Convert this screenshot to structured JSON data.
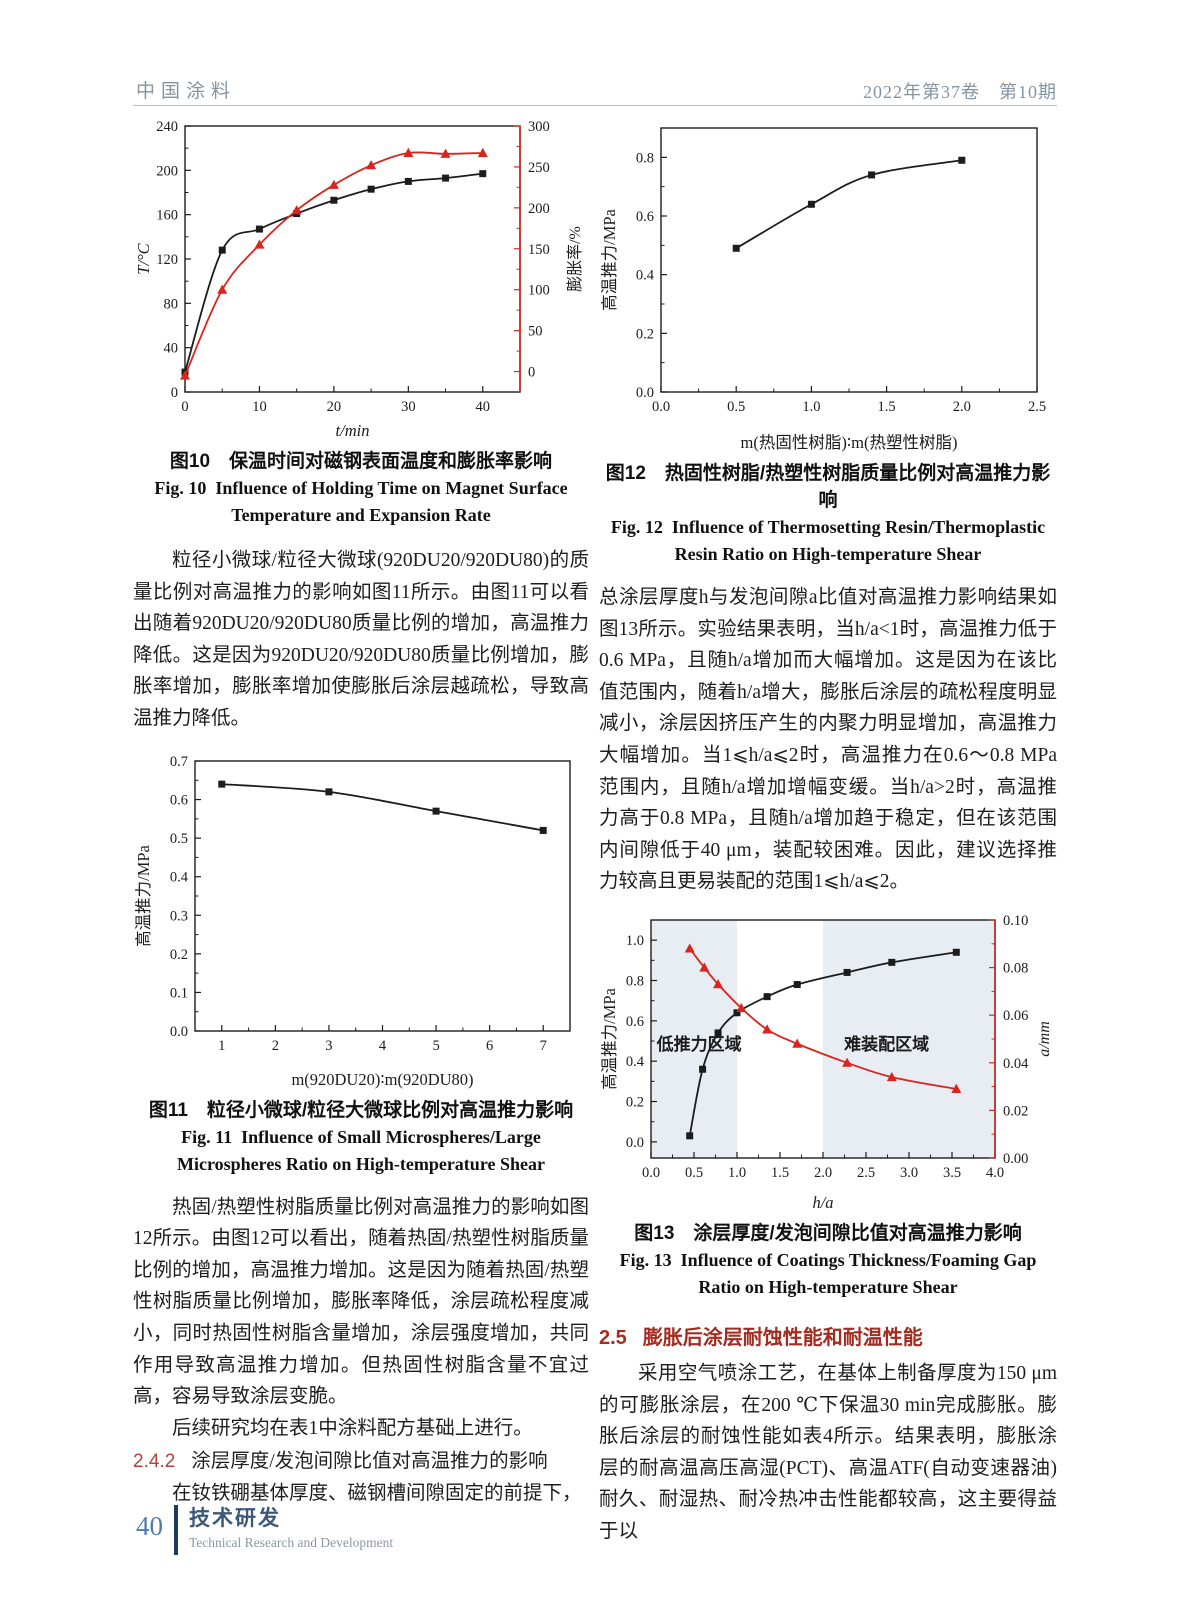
{
  "header": {
    "journal": "中国涂料",
    "issue_info": "2022年第37卷　第10期"
  },
  "footer": {
    "page_number": "40",
    "section_cn": "技术研发",
    "section_en": "Technical Research and Development"
  },
  "colors": {
    "accent_red": "#d9251d",
    "section_red": "#a32c20",
    "header_gray_blue": "#8494a2",
    "footer_blue": "#3a5878",
    "band_fill": "#e8edf4"
  },
  "left_column": {
    "fig10_caption_cn": "图10　保温时间对磁钢表面温度和膨胀率影响",
    "fig10_caption_en1": "Fig. 10 Influence of Holding Time on Magnet Surface",
    "fig10_caption_en2": "Temperature and Expansion Rate",
    "para1": "粒径小微球/粒径大微球(920DU20/920DU80)的质量比例对高温推力的影响如图11所示。由图11可以看出随着920DU20/920DU80质量比例的增加，高温推力降低。这是因为920DU20/920DU80质量比例增加，膨胀率增加，膨胀率增加使膨胀后涂层越疏松，导致高温推力降低。",
    "fig11_caption_cn": "图11　粒径小微球/粒径大微球比例对高温推力影响",
    "fig11_caption_en1": "Fig. 11 Influence of Small Microspheres/Large",
    "fig11_caption_en2": "Microspheres Ratio on High-temperature Shear",
    "para2": "热固/热塑性树脂质量比例对高温推力的影响如图12所示。由图12可以看出，随着热固/热塑性树脂质量比例的增加，高温推力增加。这是因为随着热固/热塑性树脂质量比例增加，膨胀率降低，涂层疏松程度减小，同时热固性树脂含量增加，涂层强度增加，共同作用导致高温推力增加。但热固性树脂含量不宜过高，容易导致涂层变脆。",
    "para3": "后续研究均在表1中涂料配方基础上进行。",
    "section_242": {
      "number": "2.4.2",
      "title": "涂层厚度/发泡间隙比值对高温推力的影响"
    },
    "para4": "在钕铁硼基体厚度、磁钢槽间隙固定的前提下，"
  },
  "right_column": {
    "fig12_caption_cn": "图12　热固性树脂/热塑性树脂质量比例对高温推力影响",
    "fig12_caption_en1": "Fig. 12 Influence of Thermosetting Resin/Thermoplastic",
    "fig12_caption_en2": "Resin Ratio on High-temperature Shear",
    "para1": "总涂层厚度h与发泡间隙a比值对高温推力影响结果如图13所示。实验结果表明，当h/a<1时，高温推力低于0.6 MPa，且随h/a增加而大幅增加。这是因为在该比值范围内，随着h/a增大，膨胀后涂层的疏松程度明显减小，涂层因挤压产生的内聚力明显增加，高温推力大幅增加。当1⩽h/a⩽2时，高温推力在0.6～0.8 MPa范围内，且随h/a增加增幅变缓。当h/a>2时，高温推力高于0.8 MPa，且随h/a增加趋于稳定，但在该范围内间隙低于40 μm，装配较困难。因此，建议选择推力较高且更易装配的范围1⩽h/a⩽2。",
    "fig13_caption_cn": "图13　涂层厚度/发泡间隙比值对高温推力影响",
    "fig13_caption_en1": "Fig. 13 Influence of Coatings Thickness/Foaming Gap",
    "fig13_caption_en2": "Ratio on High-temperature Shear",
    "section_25": {
      "number": "2.5",
      "title": "膨胀后涂层耐蚀性能和耐温性能"
    },
    "para2": "采用空气喷涂工艺，在基体上制备厚度为150 μm的可膨胀涂层，在200 ℃下保温30 min完成膨胀。膨胀后涂层的耐蚀性能如表4所示。结果表明，膨胀涂层的耐高温高压高湿(PCT)、高温ATF(自动变速器油)耐久、耐湿热、耐冷热冲击性能都较高，这主要得益于以"
  },
  "chart_data": [
    {
      "id": "fig10",
      "type": "line",
      "title": "保温时间对磁钢表面温度和膨胀率影响",
      "margins": {
        "l": 52,
        "r": 68,
        "t": 14,
        "b": 52
      },
      "x": {
        "range": [
          0,
          45
        ],
        "ticks": [
          0,
          10,
          20,
          30,
          40
        ],
        "tick_labels": [
          "0",
          "10",
          "20",
          "30",
          "40"
        ],
        "minor": [
          5,
          15,
          25,
          35
        ],
        "label": "t/min",
        "label_italic": true
      },
      "y": {
        "range": [
          0,
          240
        ],
        "ticks": [
          0,
          40,
          80,
          120,
          160,
          200,
          240
        ],
        "tick_labels": [
          "0",
          "40",
          "80",
          "120",
          "160",
          "200",
          "240"
        ],
        "minor": [
          20,
          60,
          100,
          140,
          180,
          220
        ],
        "label": "T/°C",
        "label_italic": true
      },
      "y2": {
        "range": [
          -25,
          300
        ],
        "ticks": [
          0,
          50,
          100,
          150,
          200,
          250,
          300
        ],
        "tick_labels": [
          "0",
          "50",
          "100",
          "150",
          "200",
          "250",
          "300"
        ],
        "minor": [
          25,
          75,
          125,
          175,
          225,
          275
        ],
        "label": "膨胀率/%",
        "color": "#d9251d"
      },
      "series": [
        {
          "name": "磁钢表面温度",
          "marker": "square",
          "color": "#1c1c1c",
          "points": [
            [
              0,
              18
            ],
            [
              5,
              128
            ],
            [
              10,
              147
            ],
            [
              15,
              161
            ],
            [
              20,
              173
            ],
            [
              25,
              183
            ],
            [
              30,
              190
            ],
            [
              35,
              193
            ],
            [
              40,
              197
            ]
          ]
        },
        {
          "name": "膨胀率",
          "marker": "triangle",
          "color": "#d9251d",
          "axis": "y2",
          "points": [
            [
              0,
              -5
            ],
            [
              5,
              100
            ],
            [
              10,
              155
            ],
            [
              15,
              197
            ],
            [
              20,
              228
            ],
            [
              25,
              252
            ],
            [
              30,
              267
            ],
            [
              35,
              266
            ],
            [
              40,
              267
            ]
          ]
        }
      ]
    },
    {
      "id": "fig11",
      "type": "line",
      "title": "粒径小微球/粒径大微球比例对高温推力影响",
      "margins": {
        "l": 62,
        "r": 18,
        "t": 14,
        "b": 62
      },
      "x": {
        "range": [
          0.5,
          7.5
        ],
        "ticks": [
          1,
          2,
          3,
          4,
          5,
          6,
          7
        ],
        "tick_labels": [
          "1",
          "2",
          "3",
          "4",
          "5",
          "6",
          "7"
        ],
        "minor": [
          1.5,
          2.5,
          3.5,
          4.5,
          5.5,
          6.5
        ],
        "label": "m(920DU20)∶m(920DU80)",
        "label_italic": false
      },
      "y": {
        "range": [
          0,
          0.7
        ],
        "ticks": [
          0,
          0.1,
          0.2,
          0.3,
          0.4,
          0.5,
          0.6,
          0.7
        ],
        "tick_labels": [
          "0.0",
          "0.1",
          "0.2",
          "0.3",
          "0.4",
          "0.5",
          "0.6",
          "0.7"
        ],
        "minor": [
          0.05,
          0.15,
          0.25,
          0.35,
          0.45,
          0.55,
          0.65
        ],
        "label": "高温推力/MPa",
        "label_italic": false
      },
      "series": [
        {
          "name": "高温推力",
          "marker": "square",
          "color": "#1c1c1c",
          "points": [
            [
              1,
              0.64
            ],
            [
              3,
              0.62
            ],
            [
              5,
              0.57
            ],
            [
              7,
              0.52
            ]
          ]
        }
      ]
    },
    {
      "id": "fig12",
      "type": "line",
      "title": "热固性树脂/热塑性树脂质量比例对高温推力影响",
      "margins": {
        "l": 62,
        "r": 20,
        "t": 16,
        "b": 64
      },
      "x": {
        "range": [
          0,
          2.5
        ],
        "ticks": [
          0,
          0.5,
          1.0,
          1.5,
          2.0,
          2.5
        ],
        "tick_labels": [
          "0.0",
          "0.5",
          "1.0",
          "1.5",
          "2.0",
          "2.5"
        ],
        "minor": [
          0.25,
          0.75,
          1.25,
          1.75,
          2.25
        ],
        "label": "m(热固性树脂)∶m(热塑性树脂)",
        "label_italic": false
      },
      "y": {
        "range": [
          0,
          0.9
        ],
        "ticks": [
          0,
          0.2,
          0.4,
          0.6,
          0.8
        ],
        "tick_labels": [
          "0.0",
          "0.2",
          "0.4",
          "0.6",
          "0.8"
        ],
        "minor": [
          0.1,
          0.3,
          0.5,
          0.7
        ],
        "label": "高温推力/MPa",
        "label_italic": false
      },
      "series": [
        {
          "name": "高温推力",
          "marker": "square",
          "color": "#1c1c1c",
          "points": [
            [
              0.5,
              0.49
            ],
            [
              1.0,
              0.64
            ],
            [
              1.4,
              0.74
            ],
            [
              2.0,
              0.79
            ]
          ]
        }
      ]
    },
    {
      "id": "fig13",
      "type": "line",
      "title": "涂层厚度/发泡间隙比值对高温推力影响",
      "margins": {
        "l": 52,
        "r": 62,
        "t": 12,
        "b": 58
      },
      "bands": [
        {
          "x0": 0,
          "x1": 1,
          "color": "#e8edf4"
        },
        {
          "x0": 2,
          "x1": 4,
          "color": "#e8edf4"
        }
      ],
      "annotations": [
        {
          "x": 0.56,
          "y": 0.455,
          "text": "低推力区域",
          "color": "#d9251d"
        },
        {
          "x": 2.74,
          "y": 0.455,
          "text": "难装配区域",
          "color": "#d9251d"
        }
      ],
      "x": {
        "range": [
          0,
          4
        ],
        "ticks": [
          0,
          0.5,
          1.0,
          1.5,
          2.0,
          2.5,
          3.0,
          3.5,
          4.0
        ],
        "tick_labels": [
          "0.0",
          "0.5",
          "1.0",
          "1.5",
          "2.0",
          "2.5",
          "3.0",
          "3.5",
          "4.0"
        ],
        "minor": [
          0.25,
          0.75,
          1.25,
          1.75,
          2.25,
          2.75,
          3.25,
          3.75
        ],
        "label": "h/a",
        "label_italic": true
      },
      "y": {
        "range": [
          -0.08,
          1.1
        ],
        "ticks": [
          0,
          0.2,
          0.4,
          0.6,
          0.8,
          1.0
        ],
        "tick_labels": [
          "0.0",
          "0.2",
          "0.4",
          "0.6",
          "0.8",
          "1.0"
        ],
        "minor": [
          0.1,
          0.3,
          0.5,
          0.7,
          0.9
        ],
        "label": "高温推力/MPa",
        "label_italic": false
      },
      "y2": {
        "range": [
          0,
          0.1
        ],
        "ticks": [
          0,
          0.02,
          0.04,
          0.06,
          0.08,
          0.1
        ],
        "tick_labels": [
          "0.00",
          "0.02",
          "0.04",
          "0.06",
          "0.08",
          "0.10"
        ],
        "minor": [
          0.01,
          0.03,
          0.05,
          0.07,
          0.09
        ],
        "label": "a/mm",
        "label_italic": true,
        "color": "#d9251d"
      },
      "series": [
        {
          "name": "高温推力",
          "marker": "square",
          "color": "#1c1c1c",
          "points": [
            [
              0.45,
              0.03
            ],
            [
              0.6,
              0.36
            ],
            [
              0.78,
              0.54
            ],
            [
              1.0,
              0.64
            ],
            [
              1.35,
              0.72
            ],
            [
              1.7,
              0.78
            ],
            [
              2.28,
              0.84
            ],
            [
              2.8,
              0.89
            ],
            [
              3.55,
              0.94
            ]
          ]
        },
        {
          "name": "发泡间隙a",
          "marker": "triangle",
          "color": "#d9251d",
          "axis": "y2",
          "points": [
            [
              0.45,
              0.088
            ],
            [
              0.62,
              0.08
            ],
            [
              0.78,
              0.073
            ],
            [
              1.05,
              0.063
            ],
            [
              1.35,
              0.054
            ],
            [
              1.7,
              0.048
            ],
            [
              2.28,
              0.04
            ],
            [
              2.8,
              0.034
            ],
            [
              3.55,
              0.029
            ]
          ]
        }
      ]
    }
  ]
}
